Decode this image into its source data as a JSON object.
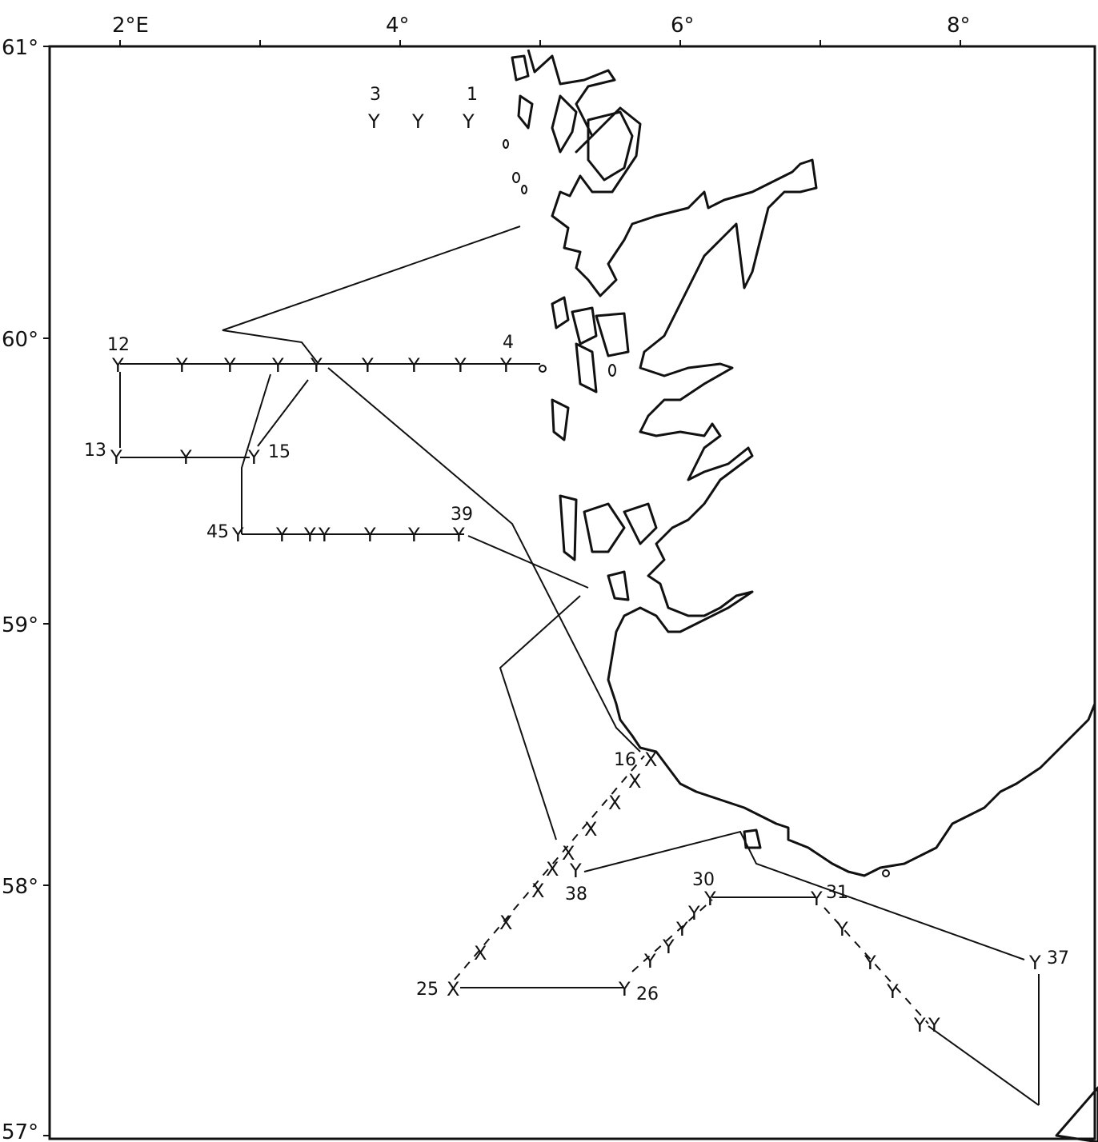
{
  "axes": {
    "lon_labels": [
      "2°E",
      "4°",
      "6°",
      "8°"
    ],
    "lat_labels": [
      "61°",
      "60°",
      "59°",
      "58°",
      "57°"
    ]
  },
  "stations": {
    "labels": [
      "3",
      "1",
      "12",
      "4",
      "13",
      "15",
      "45",
      "39",
      "16",
      "38",
      "30",
      "31",
      "37",
      "25",
      "26"
    ],
    "symbol_y": "Y",
    "symbol_x": "X"
  },
  "colors": {
    "ink": "#111111",
    "paper": "#ffffff"
  }
}
